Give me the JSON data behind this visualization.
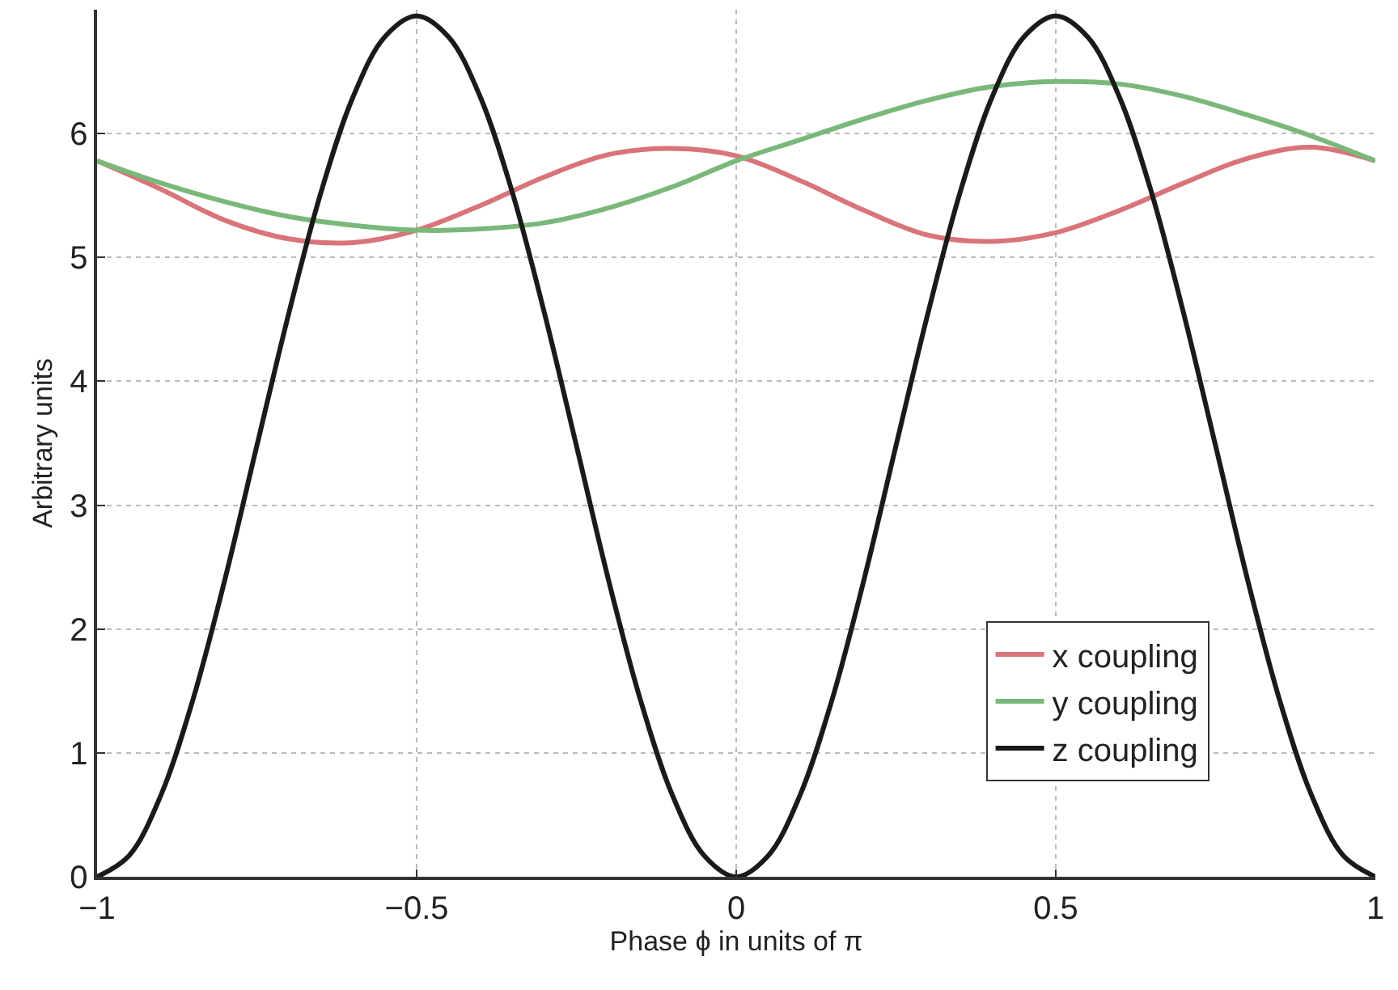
{
  "chart_data": {
    "type": "line",
    "xlabel": "Phase ϕ in units of π",
    "ylabel": "Arbitrary units",
    "xlim": [
      -1,
      1
    ],
    "ylim": [
      0,
      7
    ],
    "xticks": [
      {
        "value": -1,
        "label": "−1"
      },
      {
        "value": -0.5,
        "label": "−0.5"
      },
      0,
      0.5,
      1
    ],
    "yticks": [
      0,
      1,
      2,
      3,
      4,
      5,
      6
    ],
    "grid": true,
    "legend": "bottom right",
    "marker": "none",
    "line_style": "solid",
    "series": [
      {
        "name": "x coupling",
        "color": "#d9747a",
        "x": [
          -1,
          -0.9,
          -0.8,
          -0.7,
          -0.6,
          -0.5,
          -0.4,
          -0.3,
          -0.2,
          -0.1,
          0,
          0.1,
          0.2,
          0.3,
          0.4,
          0.5,
          0.6,
          0.7,
          0.8,
          0.9,
          1
        ],
        "values": [
          5.78,
          5.55,
          5.3,
          5.15,
          5.12,
          5.22,
          5.42,
          5.65,
          5.83,
          5.88,
          5.82,
          5.62,
          5.38,
          5.18,
          5.13,
          5.2,
          5.38,
          5.6,
          5.8,
          5.89,
          5.78
        ]
      },
      {
        "name": "y coupling",
        "color": "#7ab87a",
        "x": [
          -1,
          -0.9,
          -0.8,
          -0.7,
          -0.6,
          -0.5,
          -0.4,
          -0.3,
          -0.2,
          -0.1,
          0,
          0.1,
          0.2,
          0.3,
          0.4,
          0.5,
          0.6,
          0.7,
          0.8,
          0.9,
          1
        ],
        "values": [
          5.78,
          5.6,
          5.45,
          5.33,
          5.26,
          5.22,
          5.23,
          5.28,
          5.4,
          5.57,
          5.78,
          5.95,
          6.12,
          6.27,
          6.38,
          6.42,
          6.4,
          6.3,
          6.15,
          5.98,
          5.78
        ]
      },
      {
        "name": "z coupling",
        "color": "#1a1a1a",
        "x": [
          -1,
          -0.95,
          -0.9,
          -0.85,
          -0.8,
          -0.75,
          -0.7,
          -0.65,
          -0.6,
          -0.55,
          -0.5,
          -0.45,
          -0.4,
          -0.35,
          -0.3,
          -0.25,
          -0.2,
          -0.15,
          -0.1,
          -0.05,
          0,
          0.05,
          0.1,
          0.15,
          0.2,
          0.25,
          0.3,
          0.35,
          0.4,
          0.45,
          0.5,
          0.55,
          0.6,
          0.65,
          0.7,
          0.75,
          0.8,
          0.85,
          0.9,
          0.95,
          1
        ],
        "values": [
          0,
          0.17,
          0.66,
          1.43,
          2.4,
          3.48,
          4.55,
          5.52,
          6.29,
          6.78,
          6.95,
          6.78,
          6.29,
          5.52,
          4.55,
          3.48,
          2.4,
          1.43,
          0.66,
          0.17,
          0,
          0.17,
          0.66,
          1.43,
          2.4,
          3.48,
          4.55,
          5.52,
          6.29,
          6.78,
          6.95,
          6.78,
          6.29,
          5.52,
          4.55,
          3.48,
          2.4,
          1.43,
          0.66,
          0.17,
          0
        ]
      }
    ]
  }
}
